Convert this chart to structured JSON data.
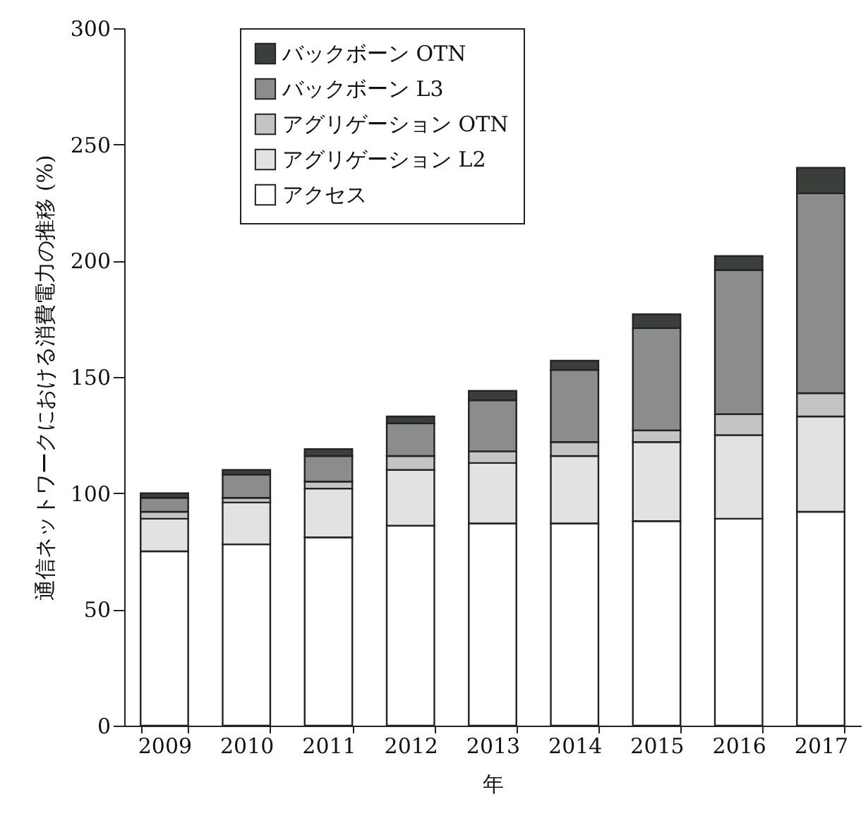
{
  "chart_data": {
    "type": "bar",
    "stacked": true,
    "xlabel": "年",
    "ylabel": "通信ネットワークにおける消費電力の推移 (%)",
    "categories": [
      "2009",
      "2010",
      "2011",
      "2012",
      "2013",
      "2014",
      "2015",
      "2016",
      "2017"
    ],
    "series": [
      {
        "name": "アクセス",
        "color": "#ffffff",
        "values": [
          75,
          78,
          81,
          86,
          87,
          87,
          88,
          89,
          92
        ]
      },
      {
        "name": "アグリゲーション L2",
        "color": "#e2e2e2",
        "values": [
          14,
          18,
          21,
          24,
          26,
          29,
          34,
          36,
          41
        ]
      },
      {
        "name": "アグリゲーション OTN",
        "color": "#c4c4c4",
        "values": [
          3,
          2,
          3,
          6,
          5,
          6,
          5,
          9,
          10
        ]
      },
      {
        "name": "バックボーン L3",
        "color": "#8c8c8c",
        "values": [
          6,
          10,
          11,
          14,
          22,
          31,
          44,
          62,
          86
        ]
      },
      {
        "name": "バックボーン OTN",
        "color": "#3a3f3c",
        "values": [
          2,
          2,
          3,
          3,
          4,
          4,
          6,
          6,
          11
        ]
      }
    ],
    "ylim": [
      0,
      300
    ],
    "yticks": [
      0,
      50,
      100,
      150,
      200,
      250,
      300
    ],
    "grid": false,
    "legend": "top left"
  }
}
